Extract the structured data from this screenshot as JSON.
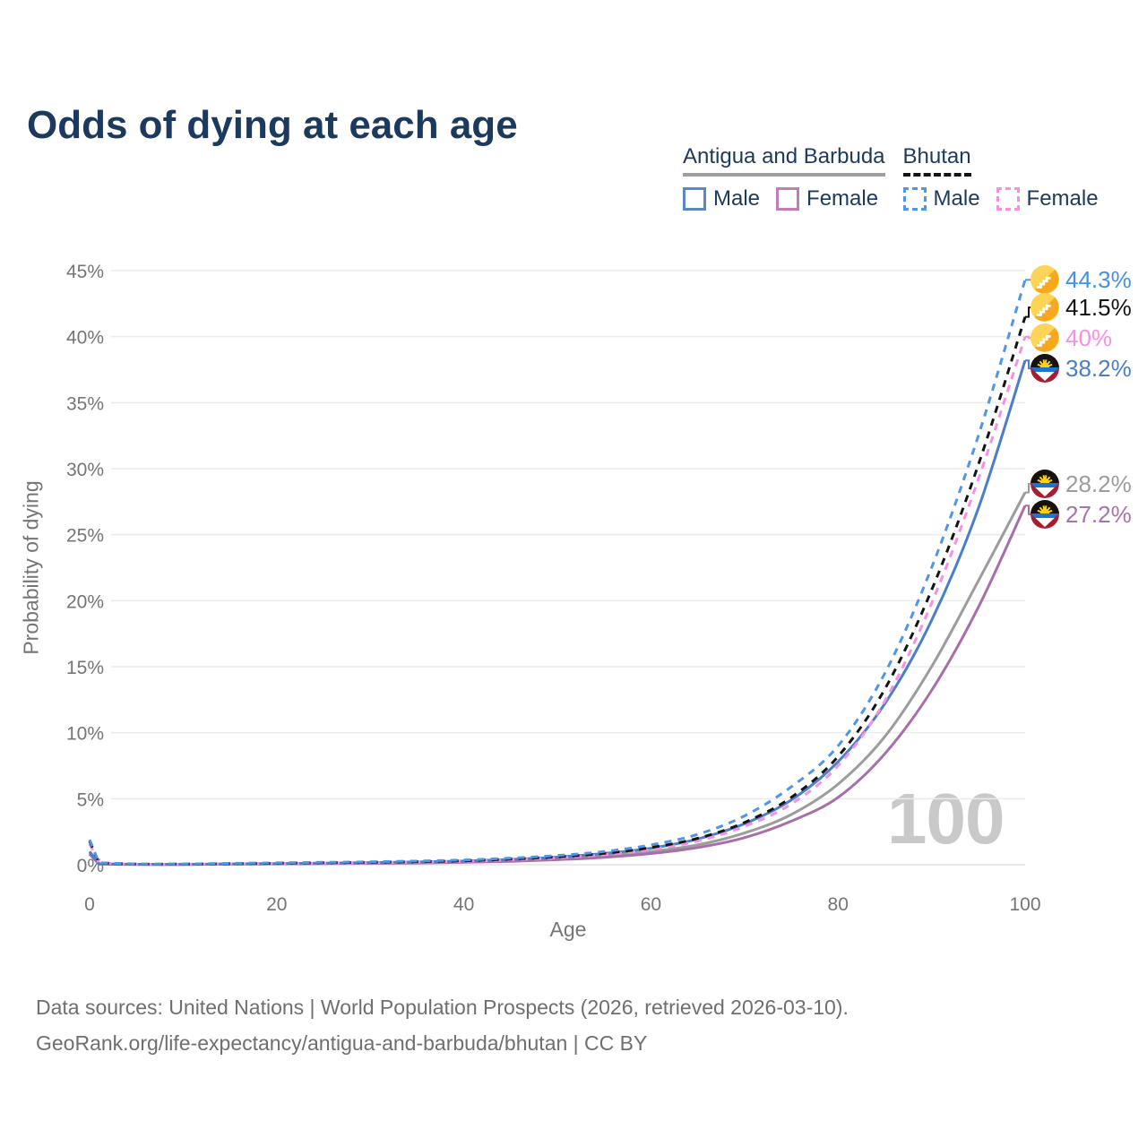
{
  "title": "Odds of dying at each age",
  "legend": {
    "groups": [
      {
        "label": "Antigua and Barbuda",
        "line_style": "solid",
        "underline_color": "#9e9e9e",
        "items": [
          {
            "label": "Male",
            "color": "#5b87c5",
            "style": "solid"
          },
          {
            "label": "Female",
            "color": "#c47cb8",
            "style": "solid"
          }
        ]
      },
      {
        "label": "Bhutan",
        "line_style": "dashed",
        "underline_color": "#141414",
        "items": [
          {
            "label": "Male",
            "color": "#4f95e8",
            "style": "dashed"
          },
          {
            "label": "Female",
            "color": "#f78fe3",
            "style": "dashed"
          }
        ]
      }
    ]
  },
  "chart_data": {
    "type": "line",
    "title": "Odds of dying at each age",
    "xlabel": "Age",
    "ylabel": "Probability of dying",
    "xlim": [
      0,
      100
    ],
    "ylim": [
      0,
      45
    ],
    "x_ticks": [
      0,
      20,
      40,
      60,
      80,
      100
    ],
    "y_ticks": [
      0,
      5,
      10,
      15,
      20,
      25,
      30,
      35,
      40,
      45
    ],
    "y_tick_suffix": "%",
    "grid": "horizontal",
    "legend_position": "top-right",
    "watermark": "100",
    "x": [
      0,
      1,
      5,
      10,
      15,
      20,
      25,
      30,
      35,
      40,
      45,
      50,
      55,
      60,
      65,
      70,
      75,
      80,
      85,
      90,
      95,
      100
    ],
    "series": [
      {
        "name": "Bhutan Male",
        "country": "Bhutan",
        "sex": "male",
        "style": "dashed",
        "color": "#4f95e8",
        "label_color": "#4590e6",
        "end_label": "44.3%",
        "end_value": 44.3,
        "flag": "bhutan",
        "values": [
          1.9,
          0.15,
          0.06,
          0.06,
          0.1,
          0.14,
          0.18,
          0.22,
          0.28,
          0.36,
          0.5,
          0.7,
          1.0,
          1.5,
          2.3,
          3.7,
          5.9,
          9.0,
          14.5,
          22.5,
          32.5,
          44.3
        ]
      },
      {
        "name": "Bhutan",
        "country": "Bhutan",
        "sex": "all",
        "style": "dashed",
        "color": "#141414",
        "label_color": "#141414",
        "end_label": "41.5%",
        "end_value": 41.5,
        "flag": "bhutan",
        "values": [
          1.8,
          0.13,
          0.05,
          0.05,
          0.08,
          0.11,
          0.15,
          0.18,
          0.23,
          0.3,
          0.43,
          0.6,
          0.86,
          1.3,
          2.0,
          3.2,
          5.1,
          8.2,
          13.3,
          20.8,
          30.3,
          41.5
        ]
      },
      {
        "name": "Bhutan Female",
        "country": "Bhutan",
        "sex": "female",
        "style": "dashed",
        "color": "#f78fe3",
        "label_color": "#f78fe3",
        "end_label": "40%",
        "end_value": 40,
        "flag": "bhutan",
        "values": [
          1.6,
          0.12,
          0.05,
          0.05,
          0.07,
          0.09,
          0.12,
          0.15,
          0.2,
          0.26,
          0.37,
          0.52,
          0.76,
          1.15,
          1.8,
          2.9,
          4.6,
          7.5,
          12.4,
          19.8,
          29.2,
          40.0
        ]
      },
      {
        "name": "Antigua and Barbuda Male",
        "country": "Antigua and Barbuda",
        "sex": "male",
        "style": "solid",
        "color": "#4a7ec7",
        "label_color": "#4a7ec7",
        "end_label": "38.2%",
        "end_value": 38.2,
        "flag": "antigua",
        "values": [
          1.0,
          0.07,
          0.03,
          0.03,
          0.06,
          0.09,
          0.12,
          0.16,
          0.21,
          0.28,
          0.4,
          0.58,
          0.85,
          1.25,
          1.95,
          3.1,
          4.9,
          7.8,
          12.2,
          18.5,
          27.0,
          38.2
        ]
      },
      {
        "name": "Antigua and Barbuda",
        "country": "Antigua and Barbuda",
        "sex": "all",
        "style": "solid",
        "color": "#9c9c9c",
        "label_color": "#9c9c9c",
        "end_label": "28.2%",
        "end_value": 28.2,
        "flag": "antigua",
        "values": [
          0.9,
          0.06,
          0.03,
          0.03,
          0.05,
          0.07,
          0.1,
          0.13,
          0.17,
          0.23,
          0.33,
          0.47,
          0.67,
          1.0,
          1.5,
          2.4,
          3.8,
          6.1,
          9.7,
          15.0,
          21.5,
          28.2
        ]
      },
      {
        "name": "Antigua and Barbuda Female",
        "country": "Antigua and Barbuda",
        "sex": "female",
        "style": "solid",
        "color": "#a76fa9",
        "label_color": "#a872aa",
        "end_label": "27.2%",
        "end_value": 27.2,
        "flag": "antigua",
        "values": [
          0.8,
          0.05,
          0.02,
          0.02,
          0.04,
          0.06,
          0.08,
          0.1,
          0.13,
          0.18,
          0.26,
          0.38,
          0.56,
          0.85,
          1.3,
          2.05,
          3.3,
          5.1,
          8.4,
          13.2,
          19.5,
          27.2
        ]
      }
    ]
  },
  "footer": {
    "line1": "Data sources: United Nations | World Population Prospects (2026, retrieved 2026-03-10).",
    "line2": "GeoRank.org/life-expectancy/antigua-and-barbuda/bhutan | CC BY"
  },
  "colors": {
    "title_text": "#1c3a5e",
    "axis_text": "#757575",
    "grid": "#ececec",
    "watermark": "#c9c9c9",
    "footer_text": "#6f6f6f",
    "background": "#ffffff"
  }
}
